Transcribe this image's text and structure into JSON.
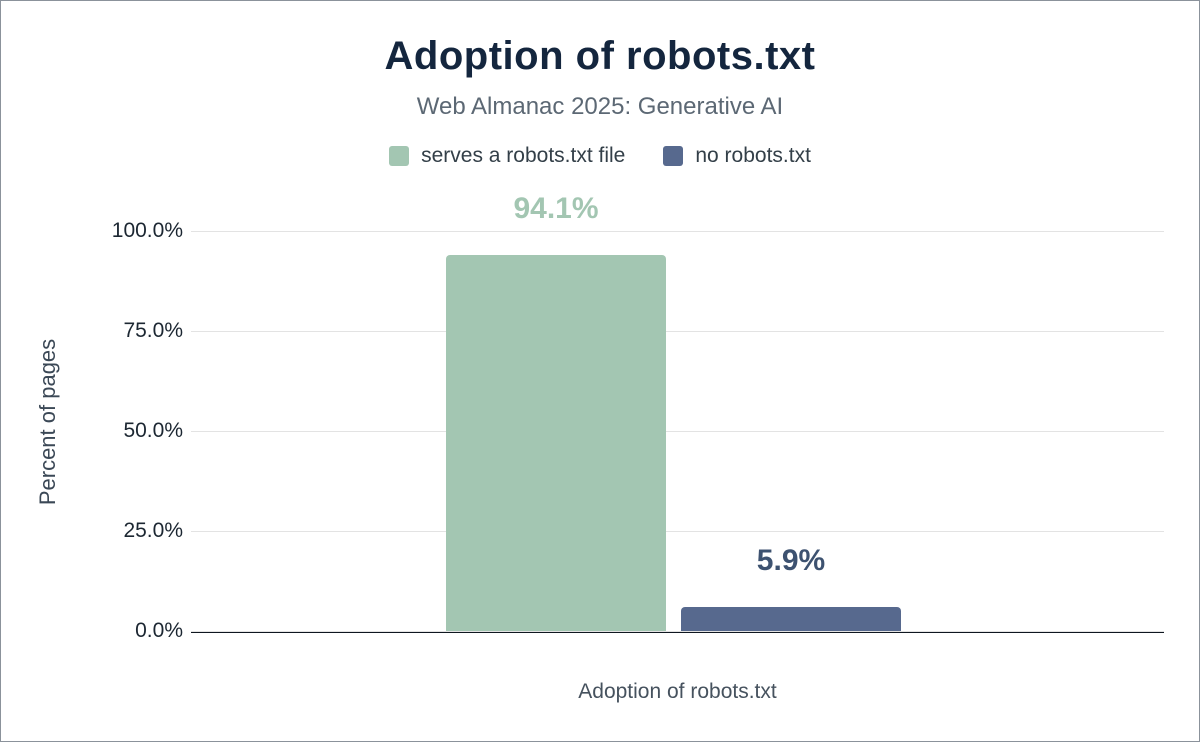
{
  "header": {
    "title": "Adoption of robots.txt",
    "subtitle": "Web Almanac 2025: Generative AI"
  },
  "legend": [
    {
      "label": "serves a robots.txt file",
      "color": "#a3c6b2"
    },
    {
      "label": "no robots.txt",
      "color": "#57698e"
    }
  ],
  "chart_data": {
    "type": "bar",
    "title": "Adoption of robots.txt",
    "subtitle": "Web Almanac 2025: Generative AI",
    "categories": [
      "serves a robots.txt file",
      "no robots.txt"
    ],
    "values": [
      94.1,
      5.9
    ],
    "value_labels": [
      "94.1%",
      "5.9%"
    ],
    "colors": [
      "#a3c6b2",
      "#57698e"
    ],
    "value_label_colors": [
      "#a3c6b2",
      "#3d5270"
    ],
    "xlabel": "Adoption of robots.txt",
    "ylabel": "Percent of pages",
    "ylim": [
      0,
      100
    ],
    "yticks": [
      0,
      25,
      50,
      75,
      100
    ],
    "ytick_labels": [
      "0.0%",
      "25.0%",
      "50.0%",
      "75.0%",
      "100.0%"
    ],
    "grid": true,
    "legend_position": "top"
  }
}
